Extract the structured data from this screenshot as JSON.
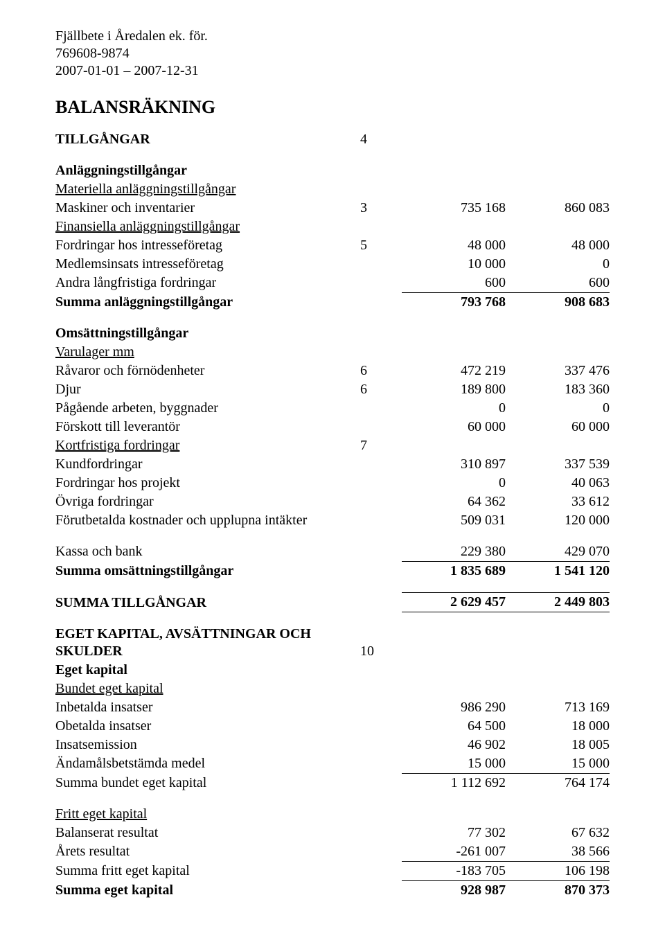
{
  "header": {
    "company": "Fjällbete i Åredalen ek. för.",
    "orgnr": "769608-9874",
    "period": "2007-01-01 – 2007-12-31"
  },
  "title": "BALANSRÄKNING",
  "sections": {
    "tillgangar": {
      "heading": "TILLGÅNGAR",
      "heading_note": "4"
    },
    "anlaggning": {
      "sub1": "Anläggningstillgångar",
      "u1": "Materiella anläggningstillgångar",
      "r1": {
        "label": "Maskiner och inventarier",
        "note": "3",
        "a": "735 168",
        "b": "860 083"
      },
      "u2": "Finansiella anläggningstillgångar",
      "r2": {
        "label": "Fordringar hos intresseföretag",
        "note": "5",
        "a": "48 000",
        "b": "48 000"
      },
      "r3": {
        "label": "Medlemsinsats intresseföretag",
        "note": "",
        "a": "10 000",
        "b": "0"
      },
      "r4": {
        "label": "Andra långfristiga fordringar",
        "note": "",
        "a": "600",
        "b": "600"
      },
      "sum": {
        "label": "Summa anläggningstillgångar",
        "a": "793 768",
        "b": "908 683"
      }
    },
    "omsattning": {
      "sub1": "Omsättningstillgångar",
      "u1": "Varulager mm",
      "r1": {
        "label": "Råvaror och förnödenheter",
        "note": "6",
        "a": "472 219",
        "b": "337 476"
      },
      "r2": {
        "label": "Djur",
        "note": "6",
        "a": "189 800",
        "b": "183 360"
      },
      "r3": {
        "label": "Pågående arbeten, byggnader",
        "note": "",
        "a": "0",
        "b": "0"
      },
      "r4": {
        "label": "Förskott till leverantör",
        "note": "",
        "a": "60 000",
        "b": "60 000"
      },
      "u2": "Kortfristiga fordringar",
      "u2_note": "7",
      "r5": {
        "label": "Kundfordringar",
        "note": "",
        "a": "310 897",
        "b": "337 539"
      },
      "r6": {
        "label": "Fordringar hos projekt",
        "note": "",
        "a": "0",
        "b": "40 063"
      },
      "r7": {
        "label": "Övriga fordringar",
        "note": "",
        "a": "64 362",
        "b": "33 612"
      },
      "r8": {
        "label": "Förutbetalda kostnader och upplupna intäkter",
        "note": "",
        "a": "509 031",
        "b": "120 000"
      },
      "kassa": {
        "label": "Kassa och bank",
        "a": "229 380",
        "b": "429 070"
      },
      "sum": {
        "label": "Summa omsättningstillgångar",
        "a": "1 835 689",
        "b": "1 541 120"
      }
    },
    "summa_tillgangar": {
      "label": "SUMMA TILLGÅNGAR",
      "a": "2 629 457",
      "b": "2 449 803"
    },
    "eget_kapital": {
      "heading": "EGET KAPITAL, AVSÄTTNINGAR OCH SKULDER",
      "heading_note": "10",
      "sub1": "Eget kapital",
      "u1": "Bundet eget kapital",
      "r1": {
        "label": "Inbetalda insatser",
        "a": "986 290",
        "b": "713 169"
      },
      "r2": {
        "label": "Obetalda insatser",
        "a": "64 500",
        "b": "18 000"
      },
      "r3": {
        "label": "Insatsemission",
        "a": "46 902",
        "b": "18 005"
      },
      "r4": {
        "label": "Ändamålsbetstämda medel",
        "a": "15 000",
        "b": "15 000"
      },
      "sum_bundet": {
        "label": "Summa bundet eget kapital",
        "a": "1 112 692",
        "b": "764 174"
      },
      "u2": "Fritt eget kapital",
      "r5": {
        "label": "Balanserat resultat",
        "a": "77 302",
        "b": "67 632"
      },
      "r6": {
        "label": "Årets resultat",
        "a": "-261 007",
        "b": "38 566"
      },
      "sum_fritt": {
        "label": "Summa fritt eget kapital",
        "a": "-183 705",
        "b": "106 198"
      },
      "sum_eget": {
        "label": "Summa eget kapital",
        "a": "928 987",
        "b": "870 373"
      }
    }
  }
}
